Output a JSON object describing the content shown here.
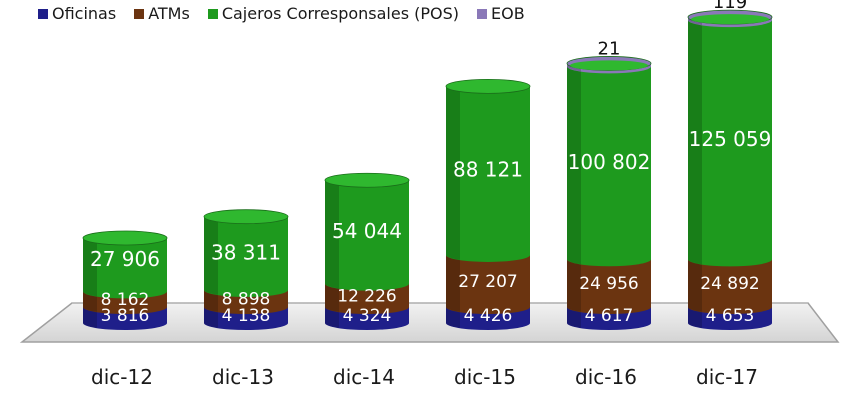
{
  "chart_data": {
    "type": "bar",
    "stacked": true,
    "categories": [
      "dic-12",
      "dic-13",
      "dic-14",
      "dic-15",
      "dic-16",
      "dic-17"
    ],
    "series": [
      {
        "name": "Oficinas",
        "color": "#1f1f8a",
        "values": [
          3816,
          4138,
          4324,
          4426,
          4617,
          4653
        ],
        "labels": [
          "3 816",
          "4 138",
          "4 324",
          "4 426",
          "4 617",
          "4 653"
        ]
      },
      {
        "name": "ATMs",
        "color": "#6b3410",
        "values": [
          8162,
          8898,
          12226,
          27207,
          24956,
          24892
        ],
        "labels": [
          "8 162",
          "8 898",
          "12 226",
          "27 207",
          "24 956",
          "24 892"
        ]
      },
      {
        "name": "Cajeros Corresponsales (POS)",
        "color": "#1e9a1e",
        "values": [
          27906,
          38311,
          54044,
          88121,
          100802,
          125059
        ],
        "labels": [
          "27 906",
          "38 311",
          "54 044",
          "88 121",
          "100 802",
          "125 059"
        ]
      },
      {
        "name": "EOB",
        "color": "#8a78b8",
        "values": [
          null,
          null,
          null,
          null,
          21,
          119
        ],
        "labels": [
          "",
          "",
          "",
          "",
          "21",
          "119"
        ]
      }
    ],
    "legend_position": "top-left",
    "grid": false
  }
}
